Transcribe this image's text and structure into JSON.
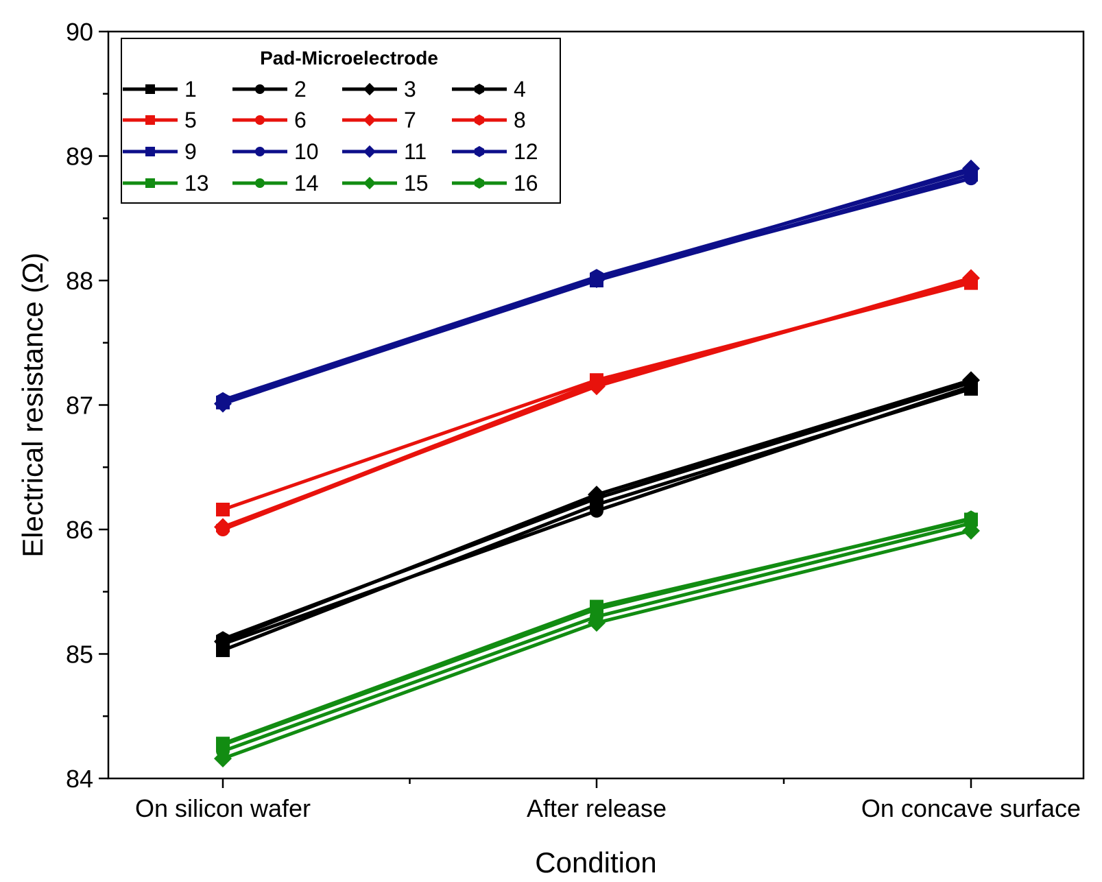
{
  "chart_data": {
    "type": "line",
    "title": "",
    "xlabel": "Condition",
    "ylabel": "Electrical resistance (Ω)",
    "categories": [
      "On silicon wafer",
      "After release",
      "On concave surface"
    ],
    "ylim": [
      84,
      90
    ],
    "yticks": [
      "84",
      "85",
      "86",
      "87",
      "88",
      "89",
      "90"
    ],
    "legend": {
      "title": "Pad-Microelectrode",
      "position": "top-left",
      "columns": 4
    },
    "series": [
      {
        "name": "1",
        "color": "#000000",
        "marker": "square",
        "values": [
          85.03,
          86.2,
          87.13
        ]
      },
      {
        "name": "2",
        "color": "#000000",
        "marker": "circle",
        "values": [
          85.08,
          86.15,
          87.15
        ]
      },
      {
        "name": "3",
        "color": "#000000",
        "marker": "diamond",
        "values": [
          85.1,
          86.28,
          87.2
        ]
      },
      {
        "name": "4",
        "color": "#000000",
        "marker": "hexagon",
        "values": [
          85.12,
          86.25,
          87.18
        ]
      },
      {
        "name": "5",
        "color": "#e8120c",
        "marker": "square",
        "values": [
          86.16,
          87.2,
          87.98
        ]
      },
      {
        "name": "6",
        "color": "#e8120c",
        "marker": "circle",
        "values": [
          86.0,
          87.17,
          88.0
        ]
      },
      {
        "name": "7",
        "color": "#e8120c",
        "marker": "diamond",
        "values": [
          86.02,
          87.15,
          88.02
        ]
      },
      {
        "name": "8",
        "color": "#e8120c",
        "marker": "hexagon",
        "values": [
          86.01,
          87.18,
          88.0
        ]
      },
      {
        "name": "9",
        "color": "#0d0f8a",
        "marker": "square",
        "values": [
          87.02,
          88.0,
          88.85
        ]
      },
      {
        "name": "10",
        "color": "#0d0f8a",
        "marker": "circle",
        "values": [
          87.03,
          88.02,
          88.82
        ]
      },
      {
        "name": "11",
        "color": "#0d0f8a",
        "marker": "diamond",
        "values": [
          87.01,
          88.01,
          88.9
        ]
      },
      {
        "name": "12",
        "color": "#0d0f8a",
        "marker": "hexagon",
        "values": [
          87.04,
          88.03,
          88.88
        ]
      },
      {
        "name": "13",
        "color": "#128c12",
        "marker": "square",
        "values": [
          84.28,
          85.38,
          86.08
        ]
      },
      {
        "name": "14",
        "color": "#128c12",
        "marker": "circle",
        "values": [
          84.22,
          85.3,
          86.05
        ]
      },
      {
        "name": "15",
        "color": "#128c12",
        "marker": "diamond",
        "values": [
          84.16,
          85.25,
          85.99
        ]
      },
      {
        "name": "16",
        "color": "#128c12",
        "marker": "hexagon",
        "values": [
          84.27,
          85.36,
          86.09
        ]
      }
    ]
  }
}
